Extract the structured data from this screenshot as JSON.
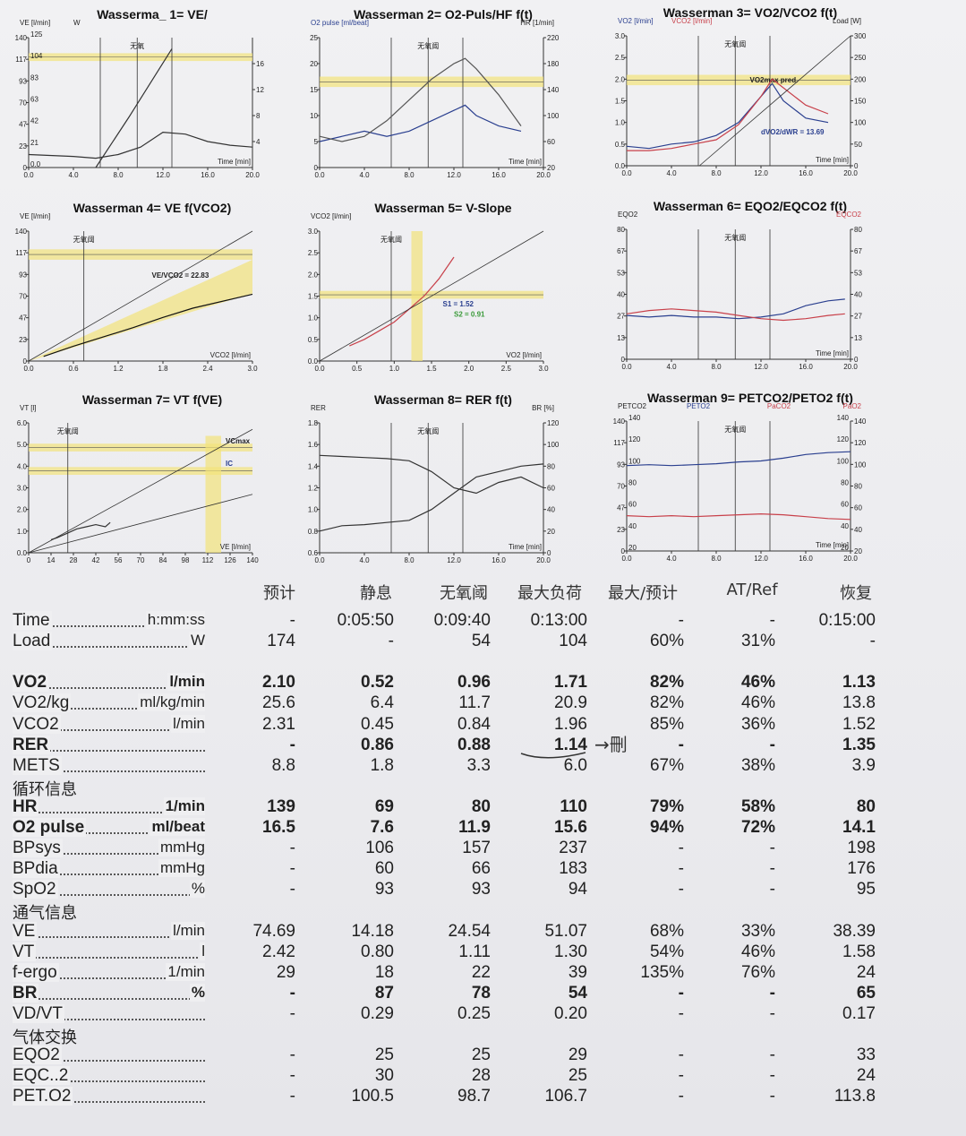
{
  "panels": [
    {
      "title": "Wasserma_ 1= VE/",
      "left_axis": "VE [l/min]",
      "left_axis2": "W",
      "left_ticks": [
        "140",
        "117",
        "93",
        "70",
        "47",
        "23",
        "0"
      ],
      "left_ticks2": [
        "125",
        "104",
        "83",
        "63",
        "42",
        "21",
        "0.0"
      ],
      "right_ticks": [
        "16",
        "12",
        "8",
        "4"
      ],
      "x_ticks": [
        "0.0",
        "4.0",
        "8.0",
        "12.0",
        "16.0",
        "20.0"
      ],
      "xlabel": "Time [min]",
      "marker": "无氧"
    },
    {
      "title": "Wasserman 2= O2-Puls/HF f(t)",
      "left_axis": "O2 pulse [ml/beat]",
      "right_axis": "HR [1/min]",
      "left_ticks": [
        "25",
        "20",
        "15",
        "10",
        "5",
        "0"
      ],
      "right_ticks": [
        "220",
        "180",
        "140",
        "100",
        "60",
        "20"
      ],
      "x_ticks": [
        "0.0",
        "4.0",
        "8.0",
        "12.0",
        "16.0",
        "20.0"
      ],
      "xlabel": "Time [min]",
      "marker": "无氧阈"
    },
    {
      "title": "Wasserman 3= VO2/VCO2 f(t)",
      "left_axis": "VO2 [l/min]",
      "left_axis2": "VCO2 [l/min]",
      "right_axis": "Load [W]",
      "left_ticks": [
        "3.0",
        "2.5",
        "2.0",
        "1.5",
        "1.0",
        "0.5",
        "0.0"
      ],
      "right_ticks": [
        "300",
        "250",
        "200",
        "150",
        "100",
        "50",
        "0"
      ],
      "x_ticks": [
        "0.0",
        "4.0",
        "8.0",
        "12.0",
        "16.0",
        "20.0"
      ],
      "xlabel": "Time [min]",
      "marker": "无氧阈",
      "annot1": "VO2max pred.",
      "annot2": "dVO2/dWR = 13.69"
    },
    {
      "title": "Wasserman 4= VE f(VCO2)",
      "left_axis": "VE [l/min]",
      "left_ticks": [
        "140",
        "117",
        "93",
        "70",
        "47",
        "23",
        "0"
      ],
      "x_ticks": [
        "0.0",
        "0.6",
        "1.2",
        "1.8",
        "2.4",
        "3.0"
      ],
      "xlabel": "VCO2 [l/min]",
      "marker": "无氧阈",
      "annot1": "VE/VCO2 = 22.83"
    },
    {
      "title": "Wasserman 5= V-Slope",
      "left_axis": "VCO2 [l/min]",
      "left_ticks": [
        "3.0",
        "2.5",
        "2.0",
        "1.5",
        "1.0",
        "0.5",
        "0.0"
      ],
      "x_ticks": [
        "0.0",
        "0.5",
        "1.0",
        "1.5",
        "2.0",
        "2.5",
        "3.0"
      ],
      "xlabel": "VO2 [l/min]",
      "marker": "无氧阈",
      "annot1": "S1 = 1.52",
      "annot2": "S2 = 0.91"
    },
    {
      "title": "Wasserman 6= EQO2/EQCO2 f(t)",
      "left_axis": "EQO2",
      "right_axis": "EQCO2",
      "left_ticks": [
        "80",
        "67",
        "53",
        "40",
        "27",
        "13",
        "0"
      ],
      "right_ticks": [
        "80",
        "67",
        "53",
        "40",
        "27",
        "13",
        "0"
      ],
      "x_ticks": [
        "0.0",
        "4.0",
        "8.0",
        "12.0",
        "16.0",
        "20.0"
      ],
      "xlabel": "Time [min]",
      "marker": "无氧阈"
    },
    {
      "title": "Wasserman 7= VT f(VE)",
      "left_axis": "VT [l]",
      "left_ticks": [
        "6.0",
        "5.0",
        "4.0",
        "3.0",
        "2.0",
        "1.0",
        "0.0"
      ],
      "x_ticks": [
        "0",
        "14",
        "28",
        "42",
        "56",
        "70",
        "84",
        "98",
        "112",
        "126",
        "140"
      ],
      "xlabel": "VE [l/min]",
      "marker": "无氧阈",
      "annot1": "VCmax",
      "annot2": "IC"
    },
    {
      "title": "Wasserman 8= RER f(t)",
      "left_axis": "RER",
      "right_axis": "BR [%]",
      "left_ticks": [
        "1.8",
        "1.6",
        "1.4",
        "1.2",
        "1.0",
        "0.8",
        "0.6"
      ],
      "right_ticks": [
        "120",
        "100",
        "80",
        "60",
        "40",
        "20",
        "0"
      ],
      "x_ticks": [
        "0.0",
        "4.0",
        "8.0",
        "12.0",
        "16.0",
        "20.0"
      ],
      "xlabel": "Time [min]",
      "marker": "无氧阈"
    },
    {
      "title": "Wasserman 9= PETCO2/PETO2 f(t)",
      "left_axis": "PETCO2",
      "mid_axis": "PETO2",
      "mid_axis2": "PaCO2",
      "right_axis": "PaO2",
      "left_ticks": [
        "140",
        "117",
        "93",
        "70",
        "47",
        "23",
        "0"
      ],
      "left_ticks2": [
        "140",
        "120",
        "100",
        "80",
        "60",
        "40",
        "20"
      ],
      "right_ticks": [
        "140",
        "120",
        "100",
        "80",
        "60",
        "40",
        "20"
      ],
      "right_ticks2": [
        "140",
        "120",
        "100",
        "80",
        "60",
        "40",
        "20"
      ],
      "x_ticks": [
        "0.0",
        "4.0",
        "8.0",
        "12.0",
        "16.0",
        "20.0"
      ],
      "xlabel": "Time [min]",
      "marker": "无氧阈"
    }
  ],
  "chart_data": [
    {
      "type": "line",
      "title": "Wasserma_ 1= VE/",
      "xlabel": "Time [min]",
      "xlim": [
        0,
        20
      ],
      "ylim": [
        0,
        140
      ],
      "series": [
        {
          "values_x": [
            0,
            4,
            6,
            8,
            10,
            12,
            14,
            16,
            18,
            20
          ],
          "values": [
            14,
            12,
            10,
            14,
            22,
            38,
            36,
            28,
            24,
            22
          ]
        },
        {
          "values_x": [
            6,
            9,
            12.8
          ],
          "values": [
            0,
            55,
            128
          ]
        }
      ]
    },
    {
      "type": "line",
      "title": "Wasserman 2= O2-Puls/HF f(t)",
      "xlabel": "Time [min]",
      "xlim": [
        0,
        20
      ],
      "ylim": [
        0,
        25
      ],
      "series": [
        {
          "values_x": [
            0,
            2,
            4,
            6,
            8,
            10,
            12,
            13,
            14,
            16,
            18
          ],
          "values": [
            5,
            6,
            7,
            6,
            7,
            9,
            11,
            12,
            10,
            8,
            7
          ]
        },
        {
          "values_x": [
            0,
            2,
            4,
            6,
            8,
            10,
            12,
            13,
            14,
            16,
            18
          ],
          "values": [
            6,
            5,
            6,
            9,
            13,
            17,
            20,
            21,
            19,
            14,
            8
          ]
        }
      ]
    },
    {
      "type": "line",
      "title": "Wasserman 3= VO2/VCO2 f(t)",
      "xlabel": "Time [min]",
      "xlim": [
        0,
        20
      ],
      "ylim": [
        0,
        3
      ],
      "series": [
        {
          "values_x": [
            0,
            2,
            4,
            6,
            8,
            10,
            12,
            13,
            14,
            16,
            18
          ],
          "values": [
            0.45,
            0.4,
            0.5,
            0.55,
            0.7,
            1.0,
            1.6,
            1.9,
            1.5,
            1.1,
            1.0
          ]
        },
        {
          "values_x": [
            0,
            2,
            4,
            6,
            8,
            10,
            12,
            13,
            14,
            16,
            18
          ],
          "values": [
            0.35,
            0.35,
            0.4,
            0.5,
            0.6,
            0.95,
            1.6,
            2.0,
            1.8,
            1.4,
            1.2
          ]
        }
      ]
    },
    {
      "type": "scatter",
      "title": "Wasserman 4= VE f(VCO2)",
      "xlabel": "VCO2 [l/min]",
      "xlim": [
        0,
        3
      ],
      "ylim": [
        0,
        140
      ],
      "series": [
        {
          "values_x": [
            0.2,
            0.6,
            1.0,
            1.4,
            1.8,
            2.2,
            3.0
          ],
          "values": [
            5,
            16,
            26,
            36,
            47,
            57,
            72
          ]
        }
      ]
    },
    {
      "type": "scatter",
      "title": "Wasserman 5= V-Slope",
      "xlabel": "VO2 [l/min]",
      "xlim": [
        0,
        3
      ],
      "ylim": [
        0,
        3
      ],
      "series": [
        {
          "values_x": [
            0.4,
            0.6,
            0.8,
            1.0,
            1.2,
            1.4,
            1.6,
            1.8
          ],
          "values": [
            0.35,
            0.5,
            0.7,
            0.9,
            1.2,
            1.5,
            1.9,
            2.4
          ]
        }
      ]
    },
    {
      "type": "line",
      "title": "Wasserman 6= EQO2/EQCO2 f(t)",
      "xlabel": "Time [min]",
      "xlim": [
        0,
        20
      ],
      "ylim": [
        0,
        80
      ],
      "series": [
        {
          "values_x": [
            0,
            2,
            4,
            6,
            8,
            10,
            12,
            14,
            16,
            18,
            19.5
          ],
          "values": [
            27,
            26,
            27,
            26,
            26,
            25,
            26,
            28,
            33,
            36,
            37
          ]
        },
        {
          "values_x": [
            0,
            2,
            4,
            6,
            8,
            10,
            12,
            14,
            16,
            18,
            19.5
          ],
          "values": [
            28,
            30,
            31,
            30,
            29,
            27,
            25,
            24,
            25,
            27,
            28
          ]
        }
      ]
    },
    {
      "type": "line",
      "title": "Wasserman 7= VT f(VE)",
      "xlabel": "VE [l/min]",
      "xlim": [
        0,
        140
      ],
      "ylim": [
        0,
        6
      ],
      "series": [
        {
          "values_x": [
            14,
            18,
            24,
            30,
            36,
            42,
            48,
            51
          ],
          "values": [
            0.6,
            0.7,
            0.9,
            1.1,
            1.2,
            1.3,
            1.2,
            1.4
          ]
        }
      ]
    },
    {
      "type": "line",
      "title": "Wasserman 8= RER f(t)",
      "xlabel": "Time [min]",
      "xlim": [
        0,
        20
      ],
      "ylim": [
        0.6,
        1.8
      ],
      "series": [
        {
          "values_x": [
            0,
            2,
            4,
            6,
            8,
            10,
            12,
            14,
            16,
            18,
            20
          ],
          "values": [
            0.8,
            0.85,
            0.86,
            0.88,
            0.9,
            1.0,
            1.15,
            1.3,
            1.35,
            1.4,
            1.42
          ]
        },
        {
          "values_x": [
            0,
            2,
            4,
            6,
            8,
            10,
            12,
            14,
            16,
            18,
            20
          ],
          "values": [
            1.5,
            1.49,
            1.48,
            1.47,
            1.45,
            1.35,
            1.2,
            1.15,
            1.25,
            1.3,
            1.2
          ]
        }
      ]
    },
    {
      "type": "line",
      "title": "Wasserman 9= PETCO2/PETO2 f(t)",
      "xlabel": "Time [min]",
      "xlim": [
        0,
        20
      ],
      "ylim": [
        0,
        140
      ],
      "series": [
        {
          "values_x": [
            0,
            2,
            4,
            6,
            8,
            10,
            12,
            14,
            16,
            18,
            20
          ],
          "values": [
            92,
            93,
            92,
            93,
            94,
            96,
            97,
            100,
            104,
            106,
            107
          ]
        },
        {
          "values_x": [
            0,
            2,
            4,
            6,
            8,
            10,
            12,
            14,
            16,
            18,
            20
          ],
          "values": [
            38,
            37,
            38,
            37,
            38,
            39,
            40,
            39,
            37,
            35,
            34
          ]
        }
      ]
    }
  ],
  "table": {
    "headers": [
      "预计",
      "静息",
      "无氧阈",
      "最大负荷",
      "最大/预计",
      "AT/Ref",
      "恢复"
    ],
    "rows": [
      {
        "name": "Time",
        "unit": "h:mm:ss",
        "bold": false,
        "vals": [
          "-",
          "0:05:50",
          "0:09:40",
          "0:13:00",
          "-",
          "-",
          "0:15:00"
        ]
      },
      {
        "name": "Load",
        "unit": "W",
        "bold": false,
        "vals": [
          "174",
          "-",
          "54",
          "104",
          "60%",
          "31%",
          "-"
        ]
      },
      {
        "gap": true
      },
      {
        "name": "VO2",
        "unit": "l/min",
        "bold": true,
        "vals": [
          "2.10",
          "0.52",
          "0.96",
          "1.71",
          "82%",
          "46%",
          "1.13"
        ]
      },
      {
        "name": "VO2/kg",
        "unit": "ml/kg/min",
        "bold": false,
        "vals": [
          "25.6",
          "6.4",
          "11.7",
          "20.9",
          "82%",
          "46%",
          "13.8"
        ]
      },
      {
        "name": "VCO2",
        "unit": "l/min",
        "bold": false,
        "vals": [
          "2.31",
          "0.45",
          "0.84",
          "1.96",
          "85%",
          "36%",
          "1.52"
        ]
      },
      {
        "name": "RER",
        "unit": "",
        "bold": true,
        "vals": [
          "-",
          "0.86",
          "0.88",
          "1.14",
          "-",
          "-",
          "1.35"
        ]
      },
      {
        "name": "METS",
        "unit": "",
        "bold": false,
        "vals": [
          "8.8",
          "1.8",
          "3.3",
          "6.0",
          "67%",
          "38%",
          "3.9"
        ]
      },
      {
        "section": "循环信息"
      },
      {
        "name": "HR",
        "unit": "1/min",
        "bold": true,
        "vals": [
          "139",
          "69",
          "80",
          "110",
          "79%",
          "58%",
          "80"
        ]
      },
      {
        "name": "O2 pulse",
        "unit": "ml/beat",
        "bold": true,
        "vals": [
          "16.5",
          "7.6",
          "11.9",
          "15.6",
          "94%",
          "72%",
          "14.1"
        ]
      },
      {
        "name": "BPsys",
        "unit": "mmHg",
        "bold": false,
        "vals": [
          "-",
          "106",
          "157",
          "237",
          "-",
          "-",
          "198"
        ]
      },
      {
        "name": "BPdia",
        "unit": "mmHg",
        "bold": false,
        "vals": [
          "-",
          "60",
          "66",
          "183",
          "-",
          "-",
          "176"
        ]
      },
      {
        "name": "SpO2",
        "unit": "%",
        "bold": false,
        "vals": [
          "-",
          "93",
          "93",
          "94",
          "-",
          "-",
          "95"
        ]
      },
      {
        "section": "通气信息"
      },
      {
        "name": "VE",
        "unit": "l/min",
        "bold": false,
        "vals": [
          "74.69",
          "14.18",
          "24.54",
          "51.07",
          "68%",
          "33%",
          "38.39"
        ]
      },
      {
        "name": "VT",
        "unit": "l",
        "bold": false,
        "vals": [
          "2.42",
          "0.80",
          "1.11",
          "1.30",
          "54%",
          "46%",
          "1.58"
        ]
      },
      {
        "name": "f-ergo",
        "unit": "1/min",
        "bold": false,
        "vals": [
          "29",
          "18",
          "22",
          "39",
          "135%",
          "76%",
          "24"
        ]
      },
      {
        "name": "BR",
        "unit": "%",
        "bold": true,
        "vals": [
          "-",
          "87",
          "78",
          "54",
          "-",
          "-",
          "65"
        ]
      },
      {
        "name": "VD/VT",
        "unit": "",
        "bold": false,
        "vals": [
          "-",
          "0.29",
          "0.25",
          "0.20",
          "-",
          "-",
          "0.17"
        ]
      },
      {
        "section": "气体交换"
      },
      {
        "name": "EQO2",
        "unit": "",
        "bold": false,
        "vals": [
          "-",
          "25",
          "25",
          "29",
          "-",
          "-",
          "33"
        ]
      },
      {
        "name": "EQC..2",
        "unit": "",
        "bold": false,
        "vals": [
          "-",
          "30",
          "28",
          "25",
          "-",
          "-",
          "24"
        ]
      },
      {
        "name": "PET.O2",
        "unit": "",
        "bold": false,
        "vals": [
          "-",
          "100.5",
          "98.7",
          "106.7",
          "-",
          "-",
          "113.8"
        ]
      }
    ],
    "handwritten_note": "→刪"
  },
  "colors": {
    "highlight": "#f2e27a",
    "blue": "#2a3f8f",
    "red": "#c8404a",
    "grid": "#222"
  }
}
